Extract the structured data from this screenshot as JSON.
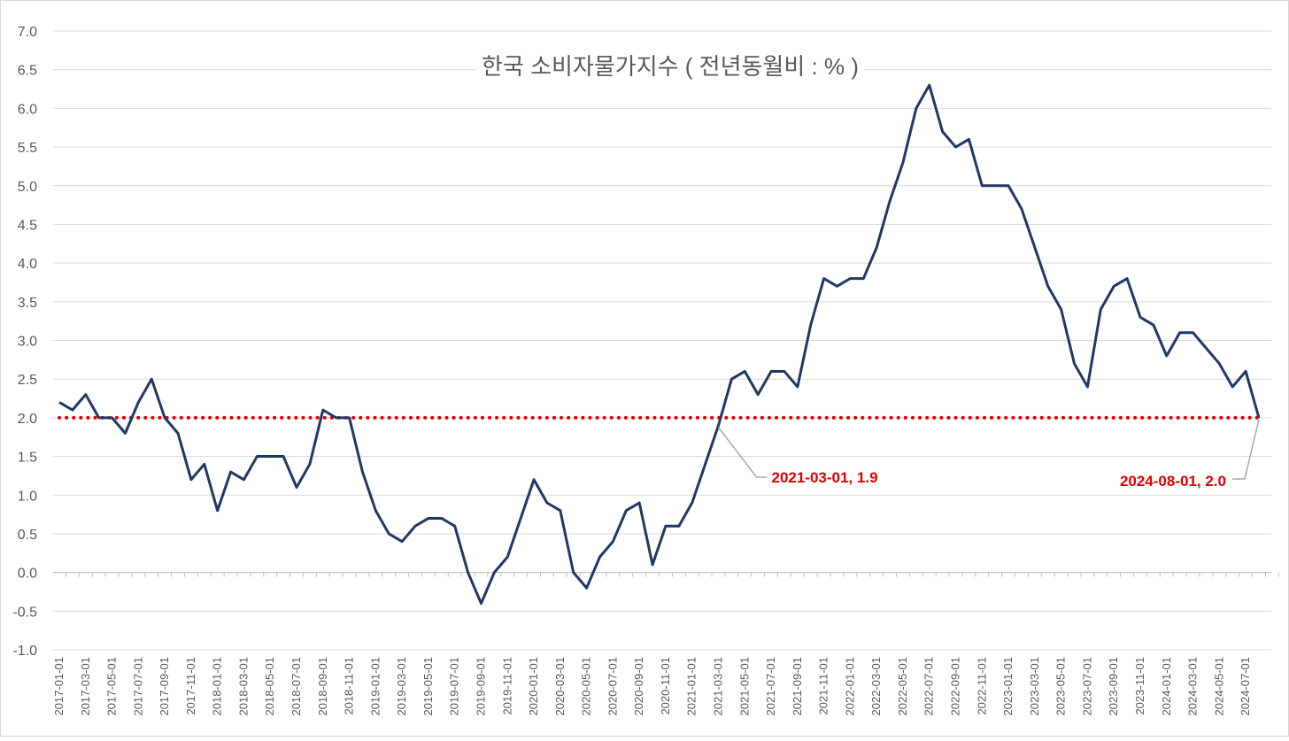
{
  "chart_data": {
    "type": "line",
    "title": "한국 소비자물가지수 ( 전년동월비 : % )",
    "xlabel": "",
    "ylabel": "",
    "ylim": [
      -1.0,
      7.0
    ],
    "y_ticks": [
      "-1.0",
      "-0.5",
      "0.0",
      "0.5",
      "1.0",
      "1.5",
      "2.0",
      "2.5",
      "3.0",
      "3.5",
      "4.0",
      "4.5",
      "5.0",
      "5.5",
      "6.0",
      "6.5",
      "7.0"
    ],
    "x_tick_labels": [
      "2017-01-01",
      "2017-03-01",
      "2017-05-01",
      "2017-07-01",
      "2017-09-01",
      "2017-11-01",
      "2018-01-01",
      "2018-03-01",
      "2018-05-01",
      "2018-07-01",
      "2018-09-01",
      "2018-11-01",
      "2019-01-01",
      "2019-03-01",
      "2019-05-01",
      "2019-07-01",
      "2019-09-01",
      "2019-11-01",
      "2020-01-01",
      "2020-03-01",
      "2020-05-01",
      "2020-07-01",
      "2020-09-01",
      "2020-11-01",
      "2021-01-01",
      "2021-03-01",
      "2021-05-01",
      "2021-07-01",
      "2021-09-01",
      "2021-11-01",
      "2022-01-01",
      "2022-03-01",
      "2022-05-01",
      "2022-07-01",
      "2022-09-01",
      "2022-11-01",
      "2023-01-01",
      "2023-03-01",
      "2023-05-01",
      "2023-07-01",
      "2023-09-01",
      "2023-11-01",
      "2024-01-01",
      "2024-03-01",
      "2024-05-01",
      "2024-07-01"
    ],
    "grid": true,
    "legend": "none",
    "line_color": "#1f3864",
    "reference_line": {
      "y": 2.0,
      "color": "#e00000",
      "style": "dotted"
    },
    "series": [
      {
        "x_start": "2017-01-01",
        "frequency": "monthly",
        "values": [
          2.2,
          2.1,
          2.3,
          2.0,
          2.0,
          1.8,
          2.2,
          2.5,
          2.0,
          1.8,
          1.2,
          1.4,
          0.8,
          1.3,
          1.2,
          1.5,
          1.5,
          1.5,
          1.1,
          1.4,
          2.1,
          2.0,
          2.0,
          1.3,
          0.8,
          0.5,
          0.4,
          0.6,
          0.7,
          0.7,
          0.6,
          0.0,
          -0.4,
          0.0,
          0.2,
          0.7,
          1.2,
          0.9,
          0.8,
          0.0,
          -0.2,
          0.2,
          0.4,
          0.8,
          0.9,
          0.1,
          0.6,
          0.6,
          0.9,
          1.4,
          1.9,
          2.5,
          2.6,
          2.3,
          2.6,
          2.6,
          2.4,
          3.2,
          3.8,
          3.7,
          3.8,
          3.8,
          4.2,
          4.8,
          5.3,
          6.0,
          6.3,
          5.7,
          5.5,
          5.6,
          5.0,
          5.0,
          5.0,
          4.7,
          4.2,
          3.7,
          3.4,
          2.7,
          2.4,
          3.4,
          3.7,
          3.8,
          3.3,
          3.2,
          2.8,
          3.1,
          3.1,
          2.9,
          2.7,
          2.4,
          2.6,
          2.0
        ]
      }
    ],
    "annotations": [
      {
        "text": "2021-03-01, 1.9",
        "x": "2021-03-01",
        "y": 1.9
      },
      {
        "text": "2024-08-01, 2.0",
        "x": "2024-08-01",
        "y": 2.0
      }
    ]
  }
}
